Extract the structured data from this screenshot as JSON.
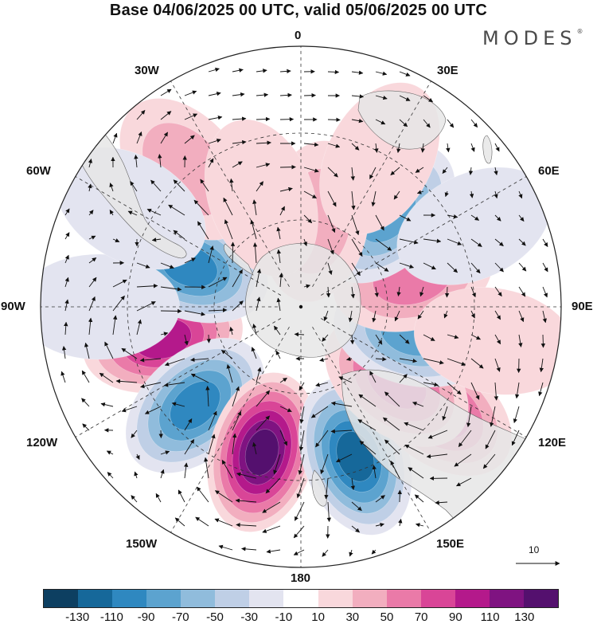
{
  "title": "Base 04/06/2025 00 UTC, valid 05/06/2025 00 UTC",
  "brand": "MODES",
  "brand_mark": "®",
  "longitude_labels": {
    "lon_0": "0",
    "lon_30e": "30E",
    "lon_60e": "60E",
    "lon_90e": "90E",
    "lon_120e": "120E",
    "lon_150e": "150E",
    "lon_180": "180",
    "lon_150w": "150W",
    "lon_120w": "120W",
    "lon_90w": "90W",
    "lon_60w": "60W",
    "lon_30w": "30W"
  },
  "reference_vector": "10",
  "colorbar": {
    "colors": [
      "#0d3f61",
      "#16689a",
      "#2f88c0",
      "#5ca3cf",
      "#90bcdc",
      "#bfcfe6",
      "#e3e4f0",
      "#ffffff",
      "#f9d8dc",
      "#f2aebf",
      "#ea7aa8",
      "#d94597",
      "#b4198b",
      "#7f1381",
      "#54106e"
    ],
    "tick_labels": [
      "-130",
      "-110",
      "-90",
      "-70",
      "-50",
      "-30",
      "-10",
      "10",
      "30",
      "50",
      "70",
      "90",
      "110",
      "130"
    ]
  },
  "map": {
    "projection": "south-polar-stereographic",
    "land_color": "#e6e6e6",
    "coast_color": "#666666",
    "anomaly_centers": [
      {
        "lon_deg": -103,
        "colat_deg": 49,
        "value": 100
      },
      {
        "lon_deg": -70,
        "colat_deg": 41,
        "value": -95
      },
      {
        "lon_deg": -133,
        "colat_deg": 50,
        "value": -100
      },
      {
        "lon_deg": -165,
        "colat_deg": 52,
        "value": 130
      },
      {
        "lon_deg": 160,
        "colat_deg": 55,
        "value": -110
      },
      {
        "lon_deg": 127,
        "colat_deg": 60,
        "value": 80
      },
      {
        "lon_deg": 128,
        "colat_deg": 42,
        "value": 70
      },
      {
        "lon_deg": 103,
        "colat_deg": 40,
        "value": -75
      },
      {
        "lon_deg": 75,
        "colat_deg": 40,
        "value": 60
      },
      {
        "lon_deg": 43,
        "colat_deg": 44,
        "value": -80
      },
      {
        "lon_deg": 10,
        "colat_deg": 30,
        "value": 40
      },
      {
        "lon_deg": 28,
        "colat_deg": 58,
        "value": 25
      },
      {
        "lon_deg": -40,
        "colat_deg": 62,
        "value": 30
      },
      {
        "lon_deg": -20,
        "colat_deg": 40,
        "value": 25
      },
      {
        "lon_deg": 100,
        "colat_deg": 68,
        "value": 20
      },
      {
        "lon_deg": -90,
        "colat_deg": 70,
        "value": -10
      },
      {
        "lon_deg": -60,
        "colat_deg": 68,
        "value": -20
      },
      {
        "lon_deg": 65,
        "colat_deg": 66,
        "value": -20
      }
    ],
    "anomaly_units_note": ""
  }
}
